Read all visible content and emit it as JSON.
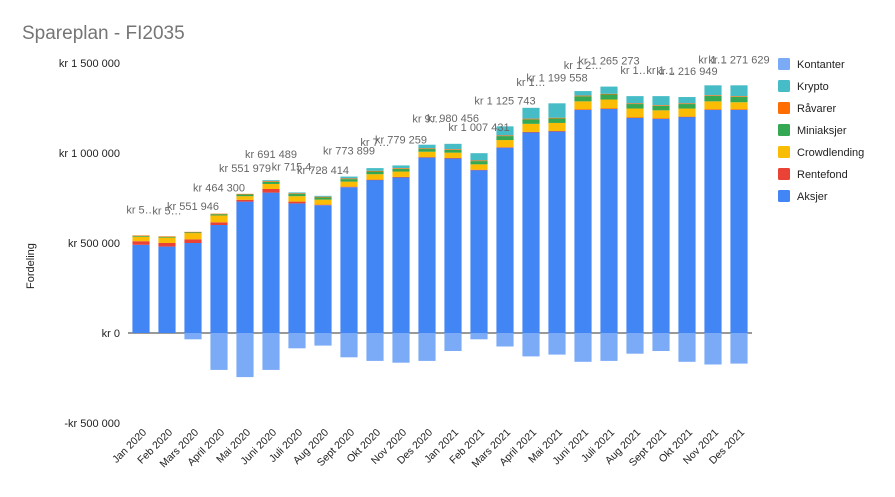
{
  "chart_data": {
    "type": "bar",
    "stacked": true,
    "title": "Spareplan - FI2035",
    "xlabel": "",
    "ylabel": "Fordeling",
    "ylim": [
      -500000,
      1500000
    ],
    "yticks": [
      -500000,
      0,
      500000,
      1000000,
      1500000
    ],
    "ytick_labels": [
      "-kr  500 000",
      "kr  0",
      "kr  500 000",
      "kr 1 000 000",
      "kr 1 500 000"
    ],
    "grid": false,
    "legend_position": "right",
    "categories": [
      "Jan 2020",
      "Feb 2020",
      "Mars 2020",
      "April 2020",
      "Mai 2020",
      "Juni 2020",
      "Juli 2020",
      "Aug 2020",
      "Sept 2020",
      "Okt 2020",
      "Nov 2020",
      "Des 2020",
      "Jan 2021",
      "Feb 2021",
      "Mars 2021",
      "April 2021",
      "Mai 2021",
      "Juni 2021",
      "Juli 2021",
      "Aug 2021",
      "Sept 2021",
      "Okt 2021",
      "Nov 2021",
      "Des 2021"
    ],
    "series": [
      {
        "name": "Kontanter",
        "color": "#7baaf7",
        "values": [
          0,
          0,
          -35000,
          -205000,
          -245000,
          -205000,
          -85000,
          -70000,
          -135000,
          -155000,
          -165000,
          -155000,
          -100000,
          -35000,
          -75000,
          -130000,
          -120000,
          -160000,
          -155000,
          -115000,
          -100000,
          -160000,
          -175000,
          -170000
        ]
      },
      {
        "name": "Krypto",
        "color": "#46bdc6",
        "values": [
          0,
          0,
          0,
          0,
          0,
          5000,
          5000,
          5000,
          10000,
          15000,
          15000,
          20000,
          30000,
          40000,
          50000,
          60000,
          80000,
          25000,
          40000,
          40000,
          50000,
          35000,
          55000,
          60000
        ]
      },
      {
        "name": "Råvarer",
        "color": "#ff6d01",
        "values": [
          2000,
          2000,
          2000,
          3000,
          3000,
          4000,
          4000,
          4000,
          4000,
          4000,
          4000,
          4000,
          4000,
          4000,
          4000,
          4000,
          4000,
          4000,
          4000,
          4000,
          4000,
          4000,
          4000,
          4000
        ]
      },
      {
        "name": "Miniaksjer",
        "color": "#34a853",
        "values": [
          5000,
          5000,
          5000,
          7000,
          10000,
          12000,
          12000,
          12000,
          14000,
          15000,
          15000,
          15000,
          15000,
          18000,
          22000,
          25000,
          25000,
          28000,
          28000,
          25000,
          25000,
          25000,
          30000,
          30000
        ]
      },
      {
        "name": "Crowdlending",
        "color": "#fbbc04",
        "values": [
          25000,
          30000,
          35000,
          38000,
          20000,
          28000,
          30000,
          28000,
          28000,
          30000,
          30000,
          30000,
          30000,
          30000,
          40000,
          45000,
          45000,
          45000,
          50000,
          50000,
          45000,
          45000,
          45000,
          40000
        ]
      },
      {
        "name": "Rentefond",
        "color": "#ea4335",
        "values": [
          20000,
          20000,
          20000,
          15000,
          10000,
          20000,
          10000,
          3000,
          3000,
          2000,
          2000,
          2000,
          2000,
          2000,
          2000,
          2000,
          2000,
          2000,
          2000,
          2000,
          2000,
          2000,
          2000,
          2000
        ]
      },
      {
        "name": "Aksjer",
        "color": "#4285f4",
        "values": [
          490000,
          480000,
          500000,
          600000,
          730000,
          780000,
          720000,
          710000,
          810000,
          850000,
          865000,
          975000,
          970000,
          905000,
          1030000,
          1115000,
          1120000,
          1240000,
          1245000,
          1195000,
          1190000,
          1200000,
          1240000,
          1240000
        ]
      }
    ],
    "data_labels": [
      {
        "index": 0,
        "text": "kr 5…"
      },
      {
        "index": 1,
        "text": "kr 5…"
      },
      {
        "index": 2,
        "text": "kr 551 946"
      },
      {
        "index": 3,
        "text": "kr 464 300"
      },
      {
        "index": 4,
        "text": "kr 551 979"
      },
      {
        "index": 5,
        "text": "kr 691 489"
      },
      {
        "index": 6,
        "text": "kr 715 4…"
      },
      {
        "index": 7,
        "text": "kr 728 414"
      },
      {
        "index": 8,
        "text": "kr 773 899"
      },
      {
        "index": 9,
        "text": "kr 7…"
      },
      {
        "index": 10,
        "text": "kr 779 259"
      },
      {
        "index": 11,
        "text": "kr 9…"
      },
      {
        "index": 12,
        "text": "kr 980 456"
      },
      {
        "index": 13,
        "text": "kr 1 007 431"
      },
      {
        "index": 14,
        "text": "kr 1 125 743"
      },
      {
        "index": 15,
        "text": "kr 1…"
      },
      {
        "index": 16,
        "text": "kr 1 199 558"
      },
      {
        "index": 17,
        "text": "kr 1 2…"
      },
      {
        "index": 18,
        "text": "kr 1 265 273"
      },
      {
        "index": 19,
        "text": "kr 1…"
      },
      {
        "index": 20,
        "text": "kr 1…"
      },
      {
        "index": 21,
        "text": "kr 1 216 949"
      },
      {
        "index": 22,
        "text": "kr 1…"
      },
      {
        "index": 23,
        "text": "kr 1 271 629"
      }
    ]
  }
}
